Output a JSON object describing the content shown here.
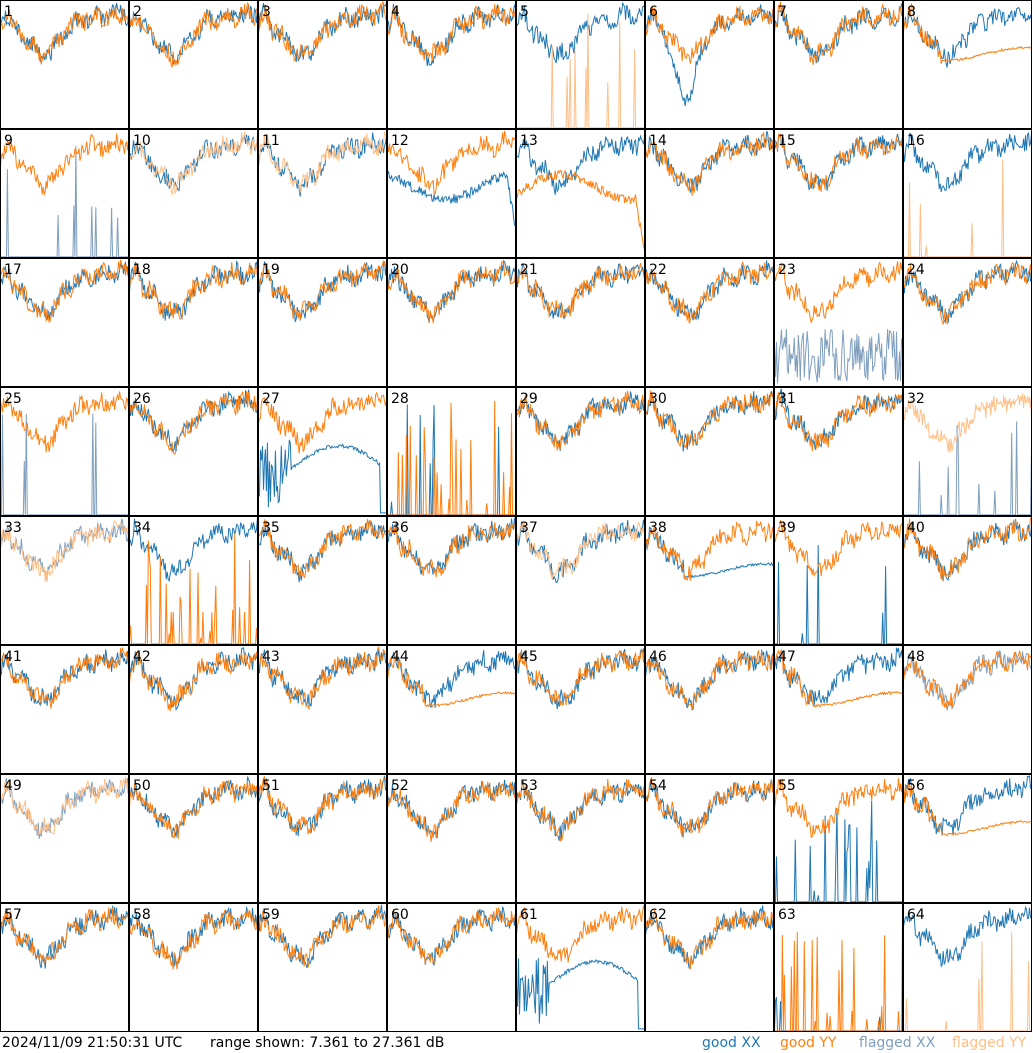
{
  "chart_data": {
    "type": "line",
    "panel_labels": [
      "1",
      "2",
      "3",
      "4",
      "5",
      "6",
      "7",
      "8",
      "9",
      "10",
      "11",
      "12",
      "13",
      "14",
      "15",
      "16",
      "17",
      "18",
      "19",
      "20",
      "21",
      "22",
      "23",
      "24",
      "25",
      "26",
      "27",
      "28",
      "29",
      "30",
      "31",
      "32",
      "33",
      "34",
      "35",
      "36",
      "37",
      "38",
      "39",
      "40",
      "41",
      "42",
      "43",
      "44",
      "45",
      "46",
      "47",
      "48",
      "49",
      "50",
      "51",
      "52",
      "53",
      "54",
      "55",
      "56",
      "57",
      "58",
      "59",
      "60",
      "61",
      "62",
      "63",
      "64"
    ],
    "range_db": [
      7.361,
      27.361
    ],
    "colors": {
      "good_xx": "#1f77b4",
      "good_yy": "#ff7f0e",
      "flagged_xx": "#7f9fbf",
      "flagged_yy": "#ffbf87"
    },
    "panels": {
      "5": {
        "yy": "spiky",
        "yy_flag": true
      },
      "6": {
        "xx": "dip"
      },
      "8": {
        "yy": "flat_late"
      },
      "9": {
        "xx": "spiky",
        "xx_flag": true
      },
      "10": {
        "yy_flag": true
      },
      "11": {
        "yy_flag": true
      },
      "12": {
        "xx": "low_drop"
      },
      "13": {
        "yy": "low_drop"
      },
      "16": {
        "yy": "spiky",
        "yy_flag": true
      },
      "23": {
        "xx": "noisy_low",
        "xx_flag": true
      },
      "25": {
        "xx": "spiky",
        "xx_flag": true
      },
      "27": {
        "xx": "hump"
      },
      "28": {
        "xx": "spiky",
        "yy": "spiky_dense"
      },
      "32": {
        "xx": "spiky",
        "xx_flag": true,
        "yy_flag": true
      },
      "33": {
        "xx_flag": true,
        "yy_flag": true
      },
      "34": {
        "yy": "spiky_dense"
      },
      "37": {
        "yy_flag": true
      },
      "38": {
        "xx": "flat_late"
      },
      "39": {
        "xx": "spiky"
      },
      "44": {
        "yy": "flat_late"
      },
      "47": {
        "yy": "flat_late"
      },
      "48": {
        "xx_flag": true
      },
      "49": {
        "xx_flag": true,
        "yy_flag": true
      },
      "55": {
        "xx": "spiky_dense"
      },
      "56": {
        "yy": "flat_late"
      },
      "61": {
        "xx": "hump"
      },
      "63": {
        "xx": "spiky",
        "yy": "spiky_dense"
      },
      "64": {
        "yy": "spiky",
        "yy_flag": true
      }
    }
  },
  "footer": {
    "timestamp": "2024/11/09 21:50:31 UTC",
    "range": "range shown: 7.361 to 27.361 dB",
    "legend": {
      "good_xx": "good XX",
      "good_yy": "good YY",
      "flagged_xx": "flagged XX",
      "flagged_yy": "flagged YY"
    }
  }
}
